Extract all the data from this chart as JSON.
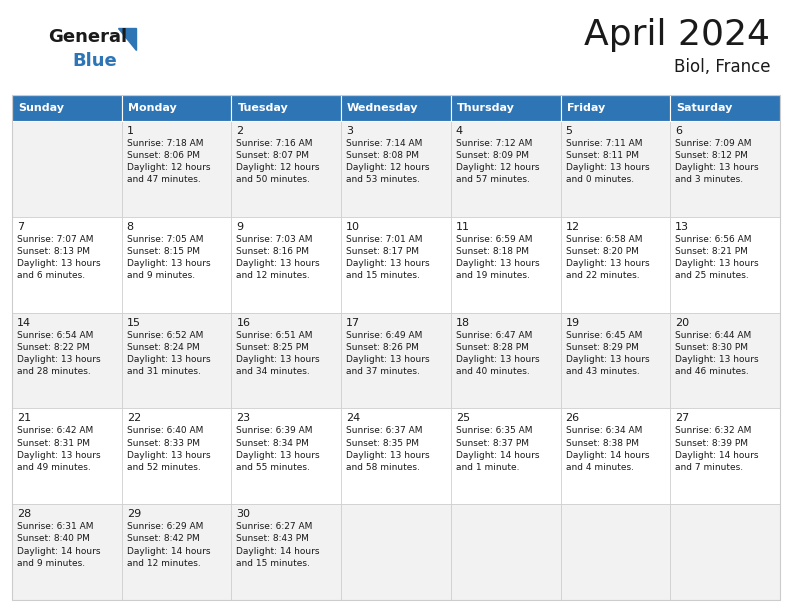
{
  "title": "April 2024",
  "subtitle": "Biol, France",
  "header_color": "#2E75B6",
  "header_text_color": "#FFFFFF",
  "bg_color": "#FFFFFF",
  "row_alt_color": "#F2F2F2",
  "row_color": "#FFFFFF",
  "grid_line_color": "#CCCCCC",
  "text_color": "#1a1a1a",
  "days_of_week": [
    "Sunday",
    "Monday",
    "Tuesday",
    "Wednesday",
    "Thursday",
    "Friday",
    "Saturday"
  ],
  "cells": [
    [
      "",
      "1",
      "2",
      "3",
      "4",
      "5",
      "6"
    ],
    [
      "7",
      "8",
      "9",
      "10",
      "11",
      "12",
      "13"
    ],
    [
      "14",
      "15",
      "16",
      "17",
      "18",
      "19",
      "20"
    ],
    [
      "21",
      "22",
      "23",
      "24",
      "25",
      "26",
      "27"
    ],
    [
      "28",
      "29",
      "30",
      "",
      "",
      "",
      ""
    ]
  ],
  "cell_data": [
    [
      "",
      "Sunrise: 7:18 AM\nSunset: 8:06 PM\nDaylight: 12 hours\nand 47 minutes.",
      "Sunrise: 7:16 AM\nSunset: 8:07 PM\nDaylight: 12 hours\nand 50 minutes.",
      "Sunrise: 7:14 AM\nSunset: 8:08 PM\nDaylight: 12 hours\nand 53 minutes.",
      "Sunrise: 7:12 AM\nSunset: 8:09 PM\nDaylight: 12 hours\nand 57 minutes.",
      "Sunrise: 7:11 AM\nSunset: 8:11 PM\nDaylight: 13 hours\nand 0 minutes.",
      "Sunrise: 7:09 AM\nSunset: 8:12 PM\nDaylight: 13 hours\nand 3 minutes."
    ],
    [
      "Sunrise: 7:07 AM\nSunset: 8:13 PM\nDaylight: 13 hours\nand 6 minutes.",
      "Sunrise: 7:05 AM\nSunset: 8:15 PM\nDaylight: 13 hours\nand 9 minutes.",
      "Sunrise: 7:03 AM\nSunset: 8:16 PM\nDaylight: 13 hours\nand 12 minutes.",
      "Sunrise: 7:01 AM\nSunset: 8:17 PM\nDaylight: 13 hours\nand 15 minutes.",
      "Sunrise: 6:59 AM\nSunset: 8:18 PM\nDaylight: 13 hours\nand 19 minutes.",
      "Sunrise: 6:58 AM\nSunset: 8:20 PM\nDaylight: 13 hours\nand 22 minutes.",
      "Sunrise: 6:56 AM\nSunset: 8:21 PM\nDaylight: 13 hours\nand 25 minutes."
    ],
    [
      "Sunrise: 6:54 AM\nSunset: 8:22 PM\nDaylight: 13 hours\nand 28 minutes.",
      "Sunrise: 6:52 AM\nSunset: 8:24 PM\nDaylight: 13 hours\nand 31 minutes.",
      "Sunrise: 6:51 AM\nSunset: 8:25 PM\nDaylight: 13 hours\nand 34 minutes.",
      "Sunrise: 6:49 AM\nSunset: 8:26 PM\nDaylight: 13 hours\nand 37 minutes.",
      "Sunrise: 6:47 AM\nSunset: 8:28 PM\nDaylight: 13 hours\nand 40 minutes.",
      "Sunrise: 6:45 AM\nSunset: 8:29 PM\nDaylight: 13 hours\nand 43 minutes.",
      "Sunrise: 6:44 AM\nSunset: 8:30 PM\nDaylight: 13 hours\nand 46 minutes."
    ],
    [
      "Sunrise: 6:42 AM\nSunset: 8:31 PM\nDaylight: 13 hours\nand 49 minutes.",
      "Sunrise: 6:40 AM\nSunset: 8:33 PM\nDaylight: 13 hours\nand 52 minutes.",
      "Sunrise: 6:39 AM\nSunset: 8:34 PM\nDaylight: 13 hours\nand 55 minutes.",
      "Sunrise: 6:37 AM\nSunset: 8:35 PM\nDaylight: 13 hours\nand 58 minutes.",
      "Sunrise: 6:35 AM\nSunset: 8:37 PM\nDaylight: 14 hours\nand 1 minute.",
      "Sunrise: 6:34 AM\nSunset: 8:38 PM\nDaylight: 14 hours\nand 4 minutes.",
      "Sunrise: 6:32 AM\nSunset: 8:39 PM\nDaylight: 14 hours\nand 7 minutes."
    ],
    [
      "Sunrise: 6:31 AM\nSunset: 8:40 PM\nDaylight: 14 hours\nand 9 minutes.",
      "Sunrise: 6:29 AM\nSunset: 8:42 PM\nDaylight: 14 hours\nand 12 minutes.",
      "Sunrise: 6:27 AM\nSunset: 8:43 PM\nDaylight: 14 hours\nand 15 minutes.",
      "",
      "",
      "",
      ""
    ]
  ],
  "logo_general_color": "#1a1a1a",
  "logo_blue_color": "#2E75B6",
  "logo_triangle_color": "#2E75B6",
  "title_fontsize": 26,
  "subtitle_fontsize": 12,
  "header_fontsize": 8,
  "day_num_fontsize": 8,
  "cell_text_fontsize": 6.5
}
